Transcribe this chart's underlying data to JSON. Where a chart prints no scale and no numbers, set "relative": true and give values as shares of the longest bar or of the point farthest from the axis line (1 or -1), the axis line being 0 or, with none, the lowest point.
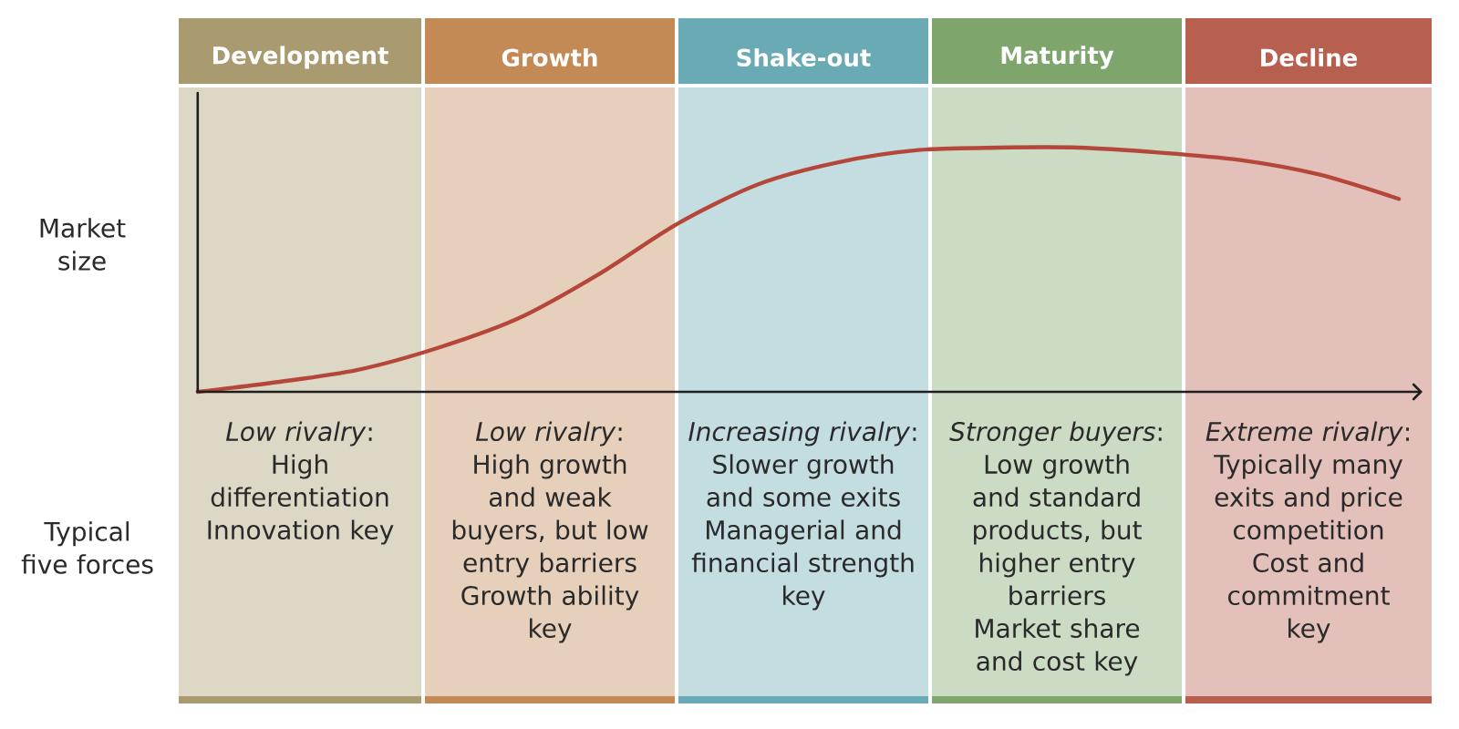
{
  "chart_data": {
    "type": "line",
    "relative": true,
    "ylabel": "Market size",
    "categories": [
      null,
      null,
      null,
      null,
      null,
      null,
      null,
      null,
      null,
      null,
      null,
      null,
      null,
      null,
      null,
      null
    ],
    "values": [
      0,
      0.04,
      0.09,
      0.18,
      0.3,
      0.48,
      0.69,
      0.85,
      0.94,
      0.99,
      1,
      1,
      0.98,
      0.95,
      0.89,
      0.79
    ],
    "color": "#b5473a",
    "marker": "none",
    "annotations": [
      "Development",
      "Growth",
      "Shake-out",
      "Maturity",
      "Decline",
      "Typical five forces",
      "*Low rivalry*:\nHigh\ndifferentiation\nInnovation key",
      "*Low rivalry*:\nHigh growth\nand weak\nbuyers, but low\nentry barriers\nGrowth ability\nkey",
      "*Increasing rivalry*:\nSlower growth\nand some exits\nManagerial and\nfinancial strength\nkey",
      "*Stronger buyers*:\nLow growth\nand standard\nproducts, but\nhigher entry\nbarriers\nMarket share\nand cost key",
      "*Extreme rivalry*:\nTypically many\nexits and price\ncompetition\nCost and\ncommitment\nkey"
    ]
  }
}
